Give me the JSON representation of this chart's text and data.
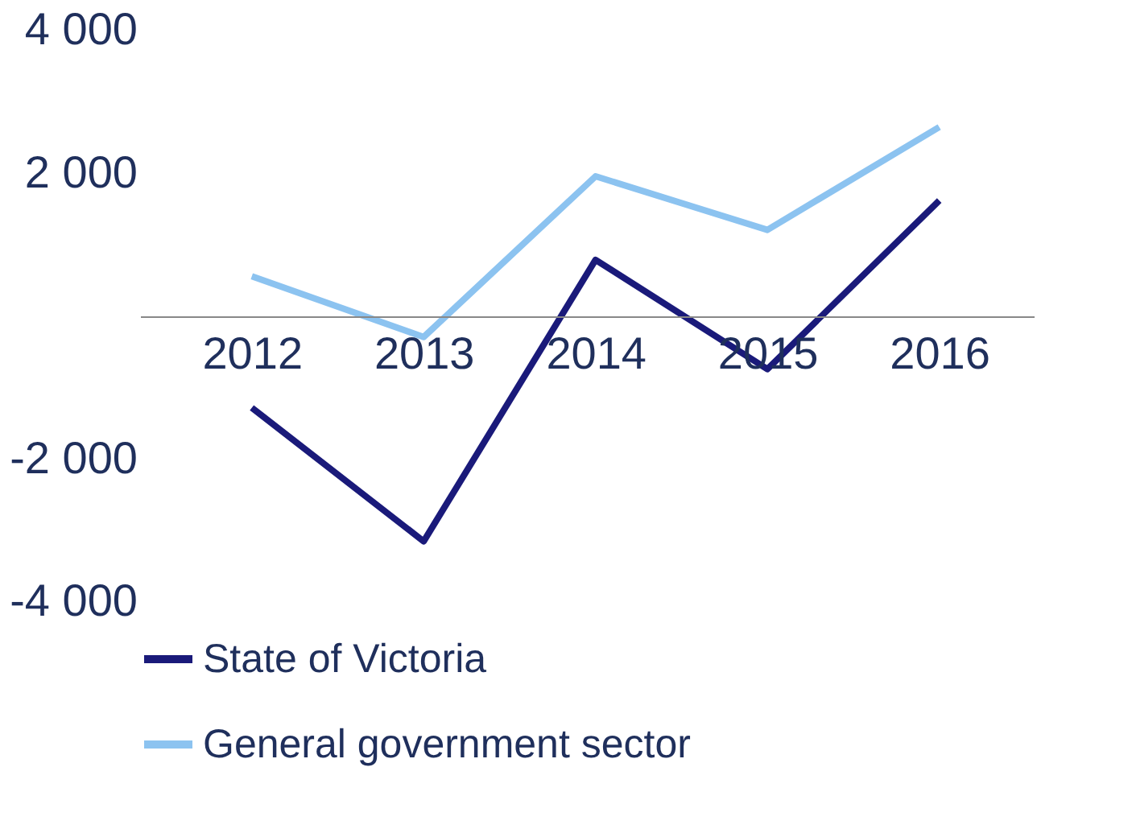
{
  "chart_data": {
    "type": "line",
    "categories": [
      "2012",
      "2013",
      "2014",
      "2015",
      "2016"
    ],
    "series": [
      {
        "name": "State of Victoria",
        "color": "#1a1a7a",
        "values": [
          -1280,
          -3150,
          790,
          -740,
          1620
        ]
      },
      {
        "name": "General government sector",
        "color": "#8cc3f0",
        "values": [
          560,
          -290,
          1960,
          1210,
          2650
        ]
      }
    ],
    "ylim": [
      -4000,
      4000
    ],
    "yticks": [
      {
        "value": -4000,
        "label": "-4 000"
      },
      {
        "value": -2000,
        "label": "-2 000"
      },
      {
        "value": 0,
        "label": null
      },
      {
        "value": 2000,
        "label": "2 000"
      },
      {
        "value": 4000,
        "label": "4 000"
      }
    ],
    "grid": false,
    "legend": "bottom",
    "marker": "none",
    "line_style": "solid"
  }
}
